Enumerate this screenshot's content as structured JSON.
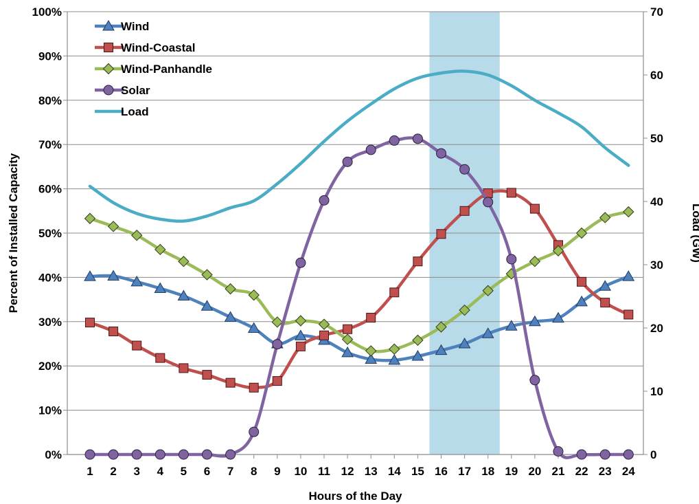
{
  "chart_data": {
    "type": "line",
    "x": [
      1,
      2,
      3,
      4,
      5,
      6,
      7,
      8,
      9,
      10,
      11,
      12,
      13,
      14,
      15,
      16,
      17,
      18,
      19,
      20,
      21,
      22,
      23,
      24
    ],
    "xlabel": "Hours of the Day",
    "ylabel": "Percent of Installed Capacity",
    "y2label": "Load (GW)",
    "ylim": [
      0,
      100
    ],
    "y2lim": [
      0,
      70
    ],
    "yticks": [
      "0%",
      "10%",
      "20%",
      "30%",
      "40%",
      "50%",
      "60%",
      "70%",
      "80%",
      "90%",
      "100%"
    ],
    "y2ticks": [
      "0",
      "10",
      "20",
      "30",
      "40",
      "50",
      "60",
      "70"
    ],
    "grid": true,
    "legend_position": "top-left",
    "highlight_band": [
      15.5,
      18.5
    ],
    "highlight_color": "#b7dbe8",
    "series": [
      {
        "name": "Wind",
        "axis": "left",
        "color": "#4f81bd",
        "marker": "triangle",
        "values": [
          40.2,
          40.3,
          39,
          37.5,
          35.8,
          33.5,
          31,
          28.5,
          25,
          26.8,
          25.8,
          23,
          21.5,
          21.3,
          22.2,
          23.5,
          25,
          27.3,
          29,
          30,
          30.8,
          34.5,
          38,
          40.2
        ]
      },
      {
        "name": "Wind-Coastal",
        "axis": "left",
        "color": "#c0504d",
        "marker": "square",
        "values": [
          29.8,
          27.8,
          24.6,
          21.8,
          19.5,
          18,
          16.2,
          15.1,
          16.6,
          24.4,
          26.9,
          28.3,
          30.9,
          36.6,
          43.6,
          49.8,
          55,
          59,
          59.1,
          55.5,
          47.3,
          39,
          34.3,
          31.6
        ]
      },
      {
        "name": "Wind-Panhandle",
        "axis": "left",
        "color": "#9bbb59",
        "marker": "diamond",
        "values": [
          53.3,
          51.5,
          49.5,
          46.3,
          43.6,
          40.6,
          37.4,
          36,
          29.9,
          30.2,
          29.4,
          26,
          23.4,
          23.8,
          25.8,
          28.8,
          32.6,
          37,
          40.8,
          43.6,
          46,
          50,
          53.5,
          54.8
        ]
      },
      {
        "name": "Solar",
        "axis": "left",
        "color": "#8064a2",
        "marker": "circle",
        "values": [
          0,
          0,
          0,
          0,
          0,
          0,
          0,
          5.1,
          24.9,
          43.3,
          57.4,
          66.1,
          68.8,
          70.9,
          71.3,
          68,
          64.4,
          57,
          44.1,
          16.8,
          0.7,
          0,
          0,
          0
        ]
      },
      {
        "name": "Load",
        "axis": "right",
        "color": "#4bacc6",
        "marker": "none",
        "values": [
          42.4,
          39.8,
          38.1,
          37.2,
          36.9,
          37.7,
          39,
          40.1,
          42.8,
          46,
          49.5,
          52.7,
          55.4,
          57.8,
          59.5,
          60.3,
          60.6,
          60,
          58.3,
          56,
          54,
          51.8,
          48.5,
          45.7
        ]
      }
    ]
  }
}
